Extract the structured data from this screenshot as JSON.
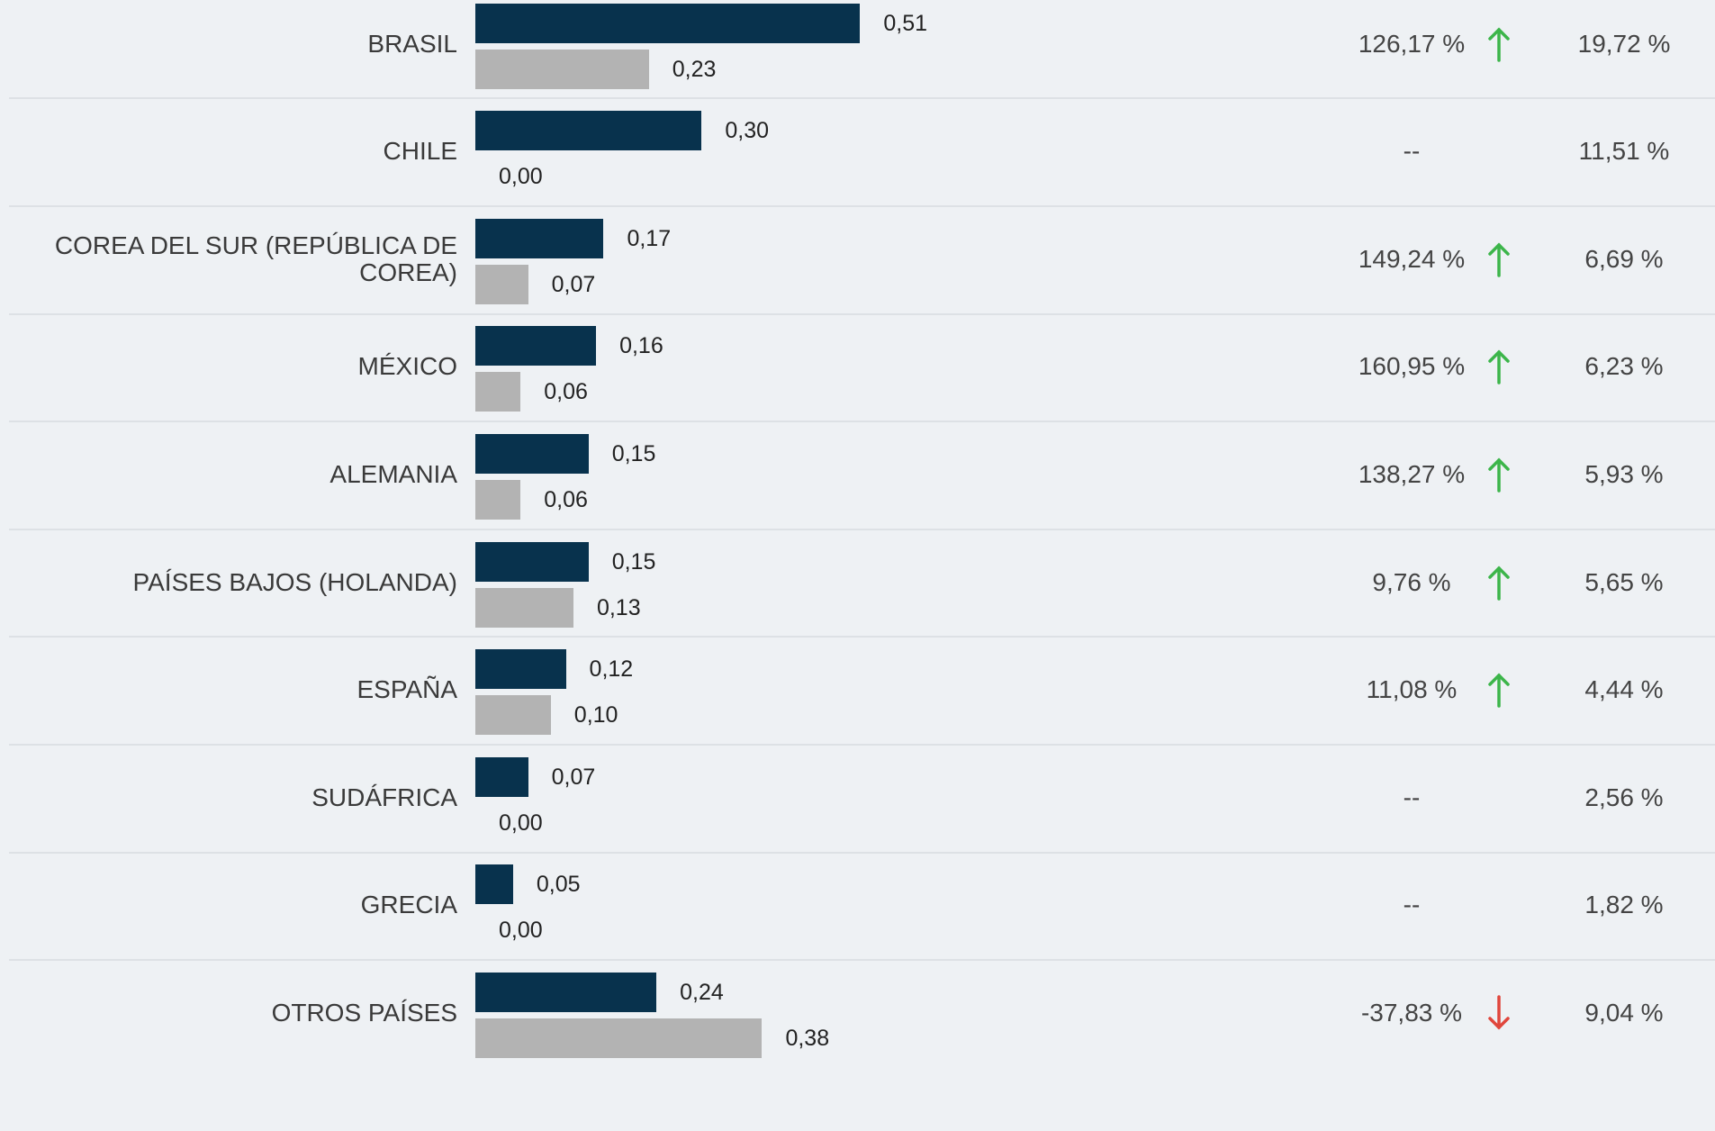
{
  "rows": [
    {
      "name": "BRASIL",
      "values": [
        0.51,
        0.23
      ],
      "value_labels": [
        "0,51",
        "0,23"
      ],
      "change": "126,17 %",
      "trend": "up",
      "share": "19,72 %"
    },
    {
      "name": "CHILE",
      "values": [
        0.3,
        0.0
      ],
      "value_labels": [
        "0,30",
        "0,00"
      ],
      "change": "--",
      "trend": null,
      "share": "11,51 %"
    },
    {
      "name": "COREA DEL SUR (REPÚBLICA DE COREA)",
      "values": [
        0.17,
        0.07
      ],
      "value_labels": [
        "0,17",
        "0,07"
      ],
      "change": "149,24 %",
      "trend": "up",
      "share": "6,69 %"
    },
    {
      "name": "MÉXICO",
      "values": [
        0.16,
        0.06
      ],
      "value_labels": [
        "0,16",
        "0,06"
      ],
      "change": "160,95 %",
      "trend": "up",
      "share": "6,23 %"
    },
    {
      "name": "ALEMANIA",
      "values": [
        0.15,
        0.06
      ],
      "value_labels": [
        "0,15",
        "0,06"
      ],
      "change": "138,27 %",
      "trend": "up",
      "share": "5,93 %"
    },
    {
      "name": "PAÍSES BAJOS (HOLANDA)",
      "values": [
        0.15,
        0.13
      ],
      "value_labels": [
        "0,15",
        "0,13"
      ],
      "change": "9,76 %",
      "trend": "up",
      "share": "5,65 %"
    },
    {
      "name": "ESPAÑA",
      "values": [
        0.12,
        0.1
      ],
      "value_labels": [
        "0,12",
        "0,10"
      ],
      "change": "11,08 %",
      "trend": "up",
      "share": "4,44 %"
    },
    {
      "name": "SUDÁFRICA",
      "values": [
        0.07,
        0.0
      ],
      "value_labels": [
        "0,07",
        "0,00"
      ],
      "change": "--",
      "trend": null,
      "share": "2,56 %"
    },
    {
      "name": "GRECIA",
      "values": [
        0.05,
        0.0
      ],
      "value_labels": [
        "0,05",
        "0,00"
      ],
      "change": "--",
      "trend": null,
      "share": "1,82 %"
    },
    {
      "name": "OTROS PAÍSES",
      "values": [
        0.24,
        0.38
      ],
      "value_labels": [
        "0,24",
        "0,38"
      ],
      "change": "-37,83 %",
      "trend": "down",
      "share": "9,04 %"
    }
  ],
  "colors": [
    "#08324d",
    "#b3b3b3"
  ],
  "up_color": "#3cb54a",
  "down_color": "#e0463c"
}
